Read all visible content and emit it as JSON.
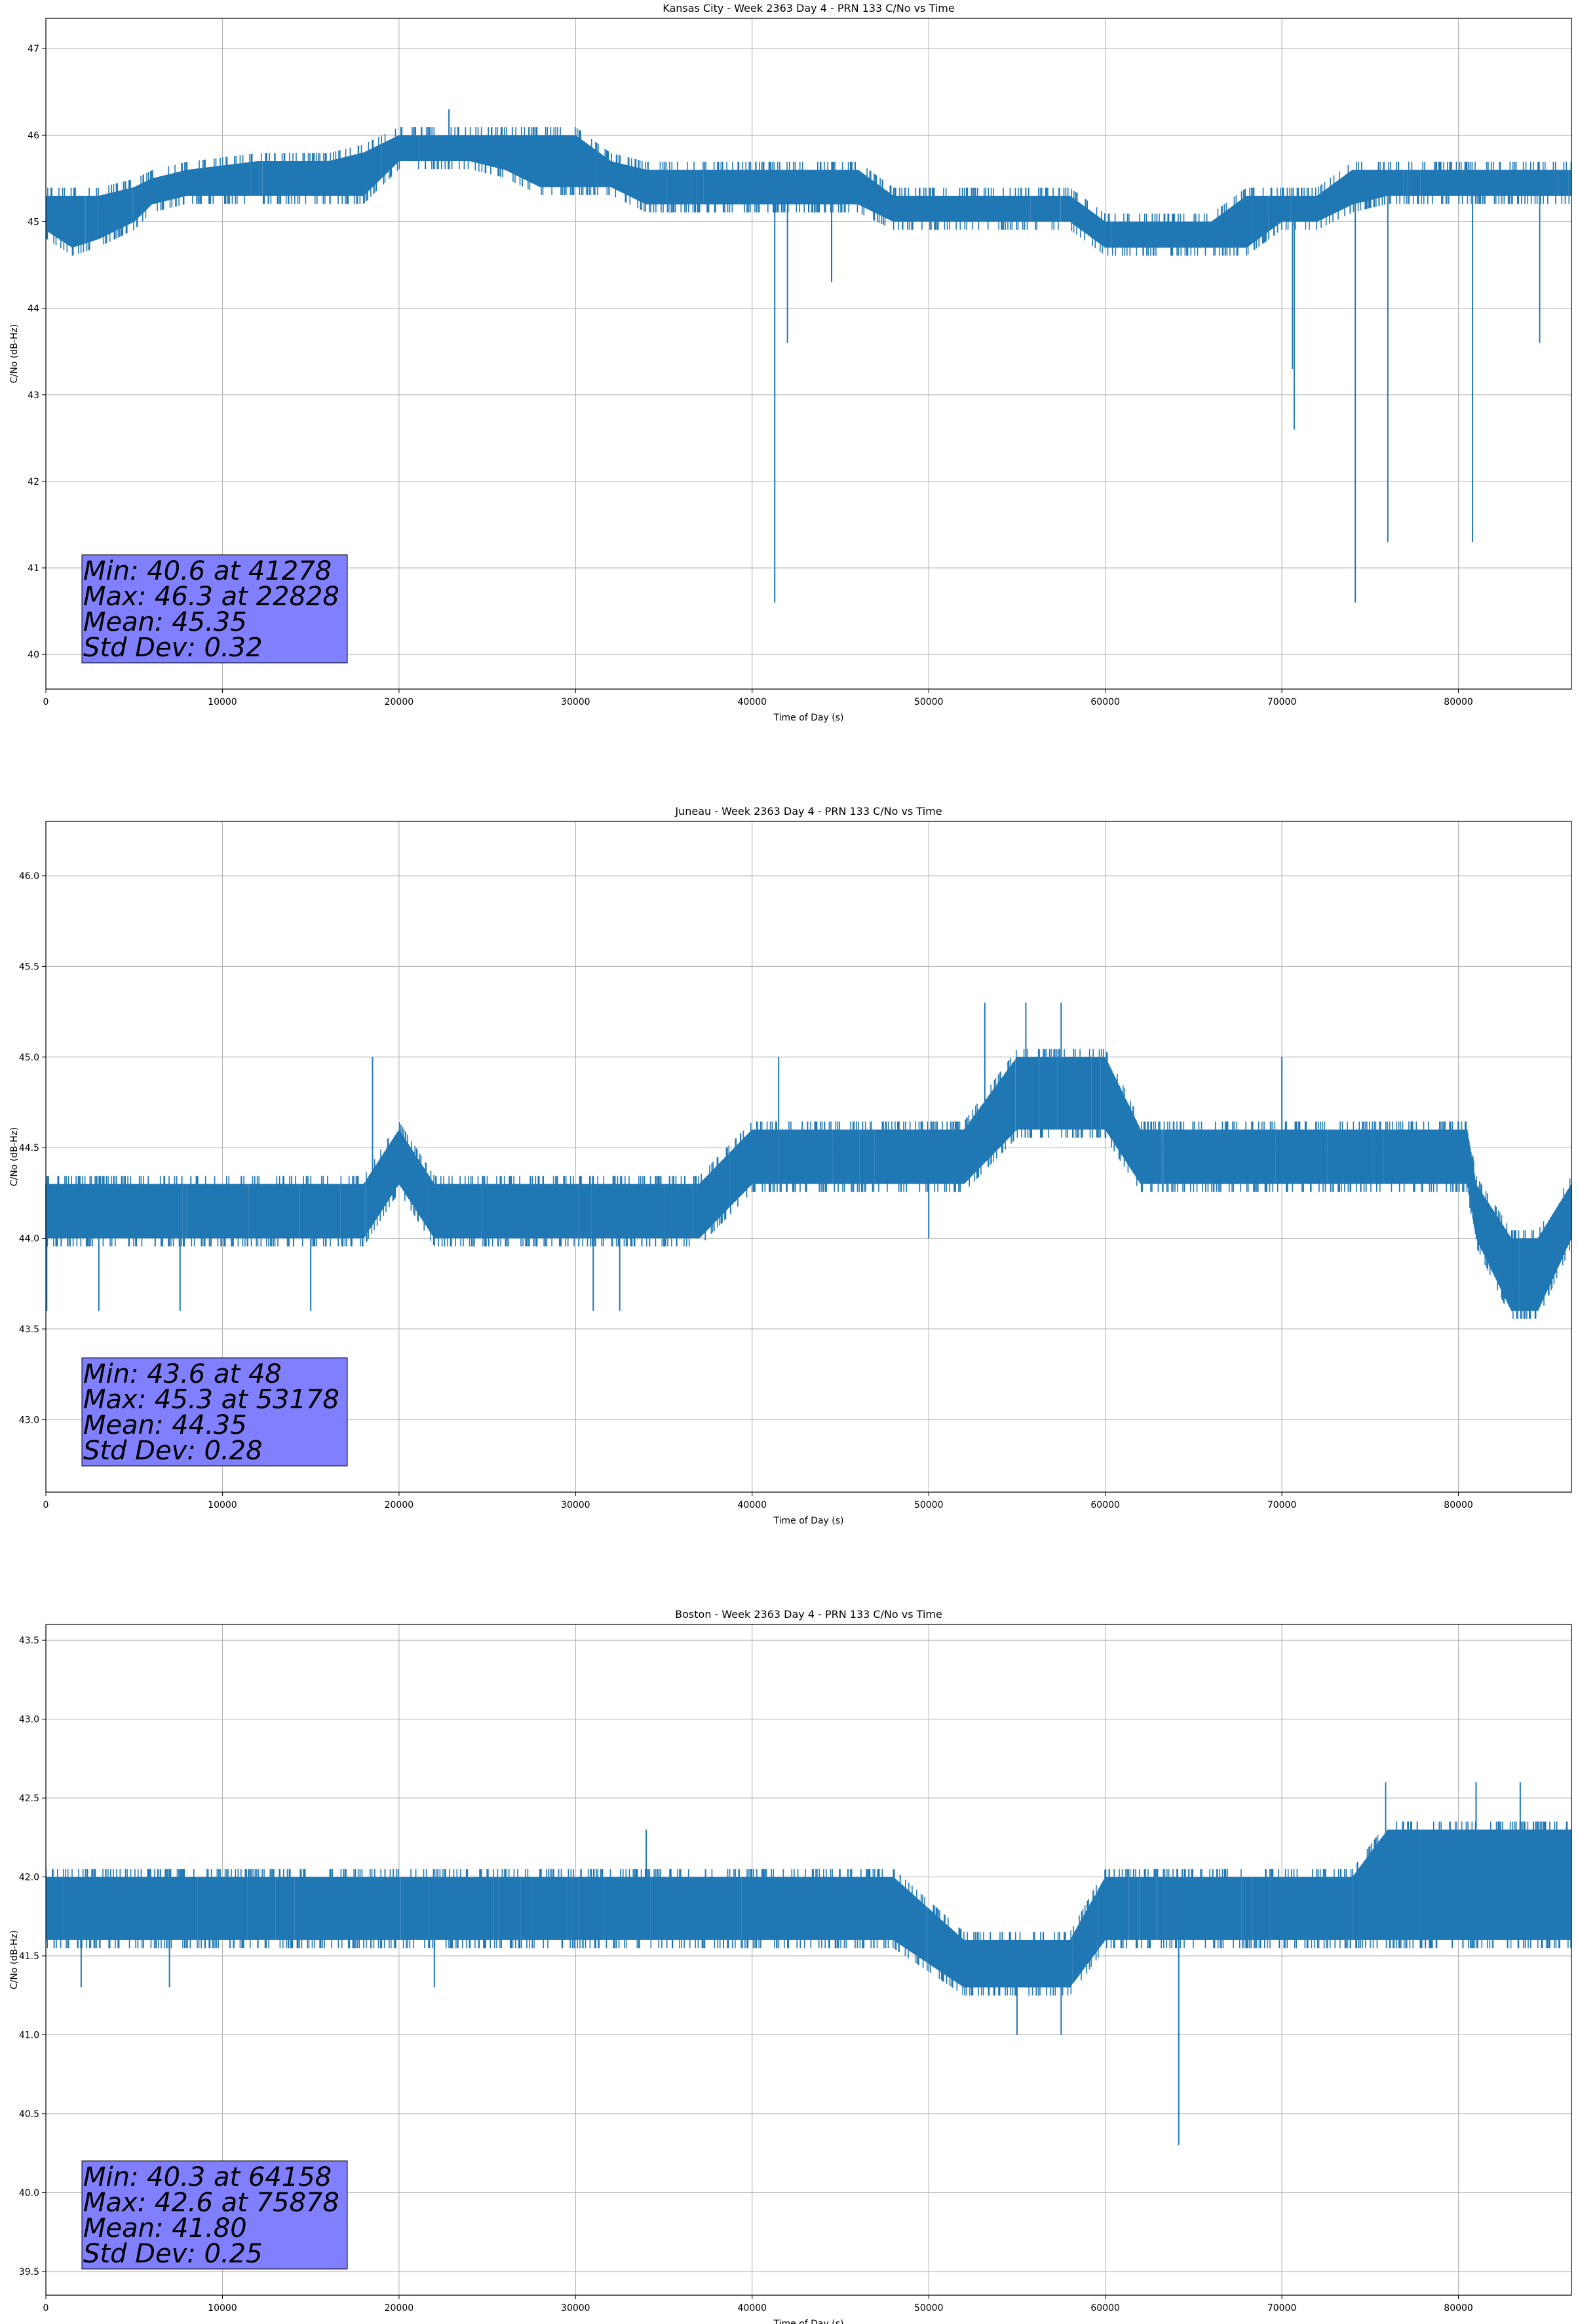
{
  "series_color": "#1f77b4",
  "stats_box_color": "#8080ff",
  "chart_data": [
    {
      "type": "line",
      "title": "Kansas City - Week 2363 Day 4 - PRN 133 C/No vs Time",
      "xlabel": "Time of Day (s)",
      "ylabel": "C/No (dB-Hz)",
      "xlim": [
        0,
        86400
      ],
      "ylim": [
        39.6,
        47.35
      ],
      "x_ticks": [
        0,
        10000,
        20000,
        30000,
        40000,
        50000,
        60000,
        70000,
        80000
      ],
      "x_tick_labels": [
        "0",
        "10000",
        "20000",
        "30000",
        "40000",
        "50000",
        "60000",
        "70000",
        "80000"
      ],
      "y_ticks": [
        40,
        41,
        42,
        43,
        44,
        45,
        46,
        47
      ],
      "y_tick_labels": [
        "40",
        "41",
        "42",
        "43",
        "44",
        "45",
        "46",
        "47"
      ],
      "grid": true,
      "band": {
        "x": [
          0,
          1500,
          3000,
          5000,
          6000,
          8000,
          12000,
          14000,
          16000,
          18000,
          20000,
          22000,
          24000,
          26000,
          28000,
          30000,
          32000,
          34000,
          36000,
          38000,
          40000,
          42000,
          44000,
          46000,
          48000,
          50000,
          52000,
          54000,
          56000,
          58000,
          60000,
          62000,
          64000,
          66000,
          68000,
          70000,
          72000,
          74000,
          76000,
          78000,
          80000,
          82000,
          84000,
          86400
        ],
        "low": [
          44.9,
          44.7,
          44.8,
          45.0,
          45.2,
          45.3,
          45.3,
          45.3,
          45.3,
          45.3,
          45.7,
          45.7,
          45.7,
          45.6,
          45.4,
          45.4,
          45.4,
          45.2,
          45.2,
          45.2,
          45.2,
          45.2,
          45.2,
          45.2,
          45.0,
          45.0,
          45.0,
          45.0,
          45.0,
          45.0,
          44.7,
          44.7,
          44.7,
          44.7,
          44.7,
          45.0,
          45.0,
          45.2,
          45.3,
          45.3,
          45.3,
          45.3,
          45.3,
          45.3
        ],
        "high": [
          45.3,
          45.3,
          45.3,
          45.4,
          45.5,
          45.6,
          45.7,
          45.7,
          45.7,
          45.8,
          46.0,
          46.0,
          46.0,
          46.0,
          46.0,
          46.0,
          45.7,
          45.6,
          45.6,
          45.6,
          45.6,
          45.6,
          45.6,
          45.6,
          45.3,
          45.3,
          45.3,
          45.3,
          45.3,
          45.3,
          45.0,
          45.0,
          45.0,
          45.0,
          45.3,
          45.3,
          45.3,
          45.6,
          45.6,
          45.6,
          45.6,
          45.6,
          45.6,
          45.6
        ]
      },
      "spikes": [
        {
          "x": 41278,
          "y": 40.6
        },
        {
          "x": 42000,
          "y": 43.6
        },
        {
          "x": 44500,
          "y": 44.3
        },
        {
          "x": 70600,
          "y": 43.3
        },
        {
          "x": 70700,
          "y": 42.6
        },
        {
          "x": 74158,
          "y": 40.6
        },
        {
          "x": 76000,
          "y": 41.3
        },
        {
          "x": 80800,
          "y": 41.3
        },
        {
          "x": 84600,
          "y": 43.6
        },
        {
          "x": 22828,
          "y": 46.3
        }
      ],
      "stats": [
        "Min: 40.6 at 41278",
        "Max: 46.3 at 22828",
        "Mean: 45.35",
        "Std Dev: 0.32"
      ]
    },
    {
      "type": "line",
      "title": "Juneau - Week 2363 Day 4 - PRN 133 C/No vs Time",
      "xlabel": "Time of Day (s)",
      "ylabel": "C/No (dB-Hz)",
      "xlim": [
        0,
        86400
      ],
      "ylim": [
        42.6,
        46.3
      ],
      "x_ticks": [
        0,
        10000,
        20000,
        30000,
        40000,
        50000,
        60000,
        70000,
        80000
      ],
      "x_tick_labels": [
        "0",
        "10000",
        "20000",
        "30000",
        "40000",
        "50000",
        "60000",
        "70000",
        "80000"
      ],
      "y_ticks": [
        43.0,
        43.5,
        44.0,
        44.5,
        45.0,
        45.5,
        46.0
      ],
      "y_tick_labels": [
        "43.0",
        "43.5",
        "44.0",
        "44.5",
        "45.0",
        "45.5",
        "46.0"
      ],
      "grid": true,
      "band": {
        "x": [
          0,
          2000,
          5000,
          10000,
          15000,
          18000,
          20000,
          22000,
          25000,
          30000,
          35000,
          37000,
          40000,
          45000,
          50000,
          52000,
          55000,
          58000,
          60000,
          62000,
          65000,
          70000,
          75000,
          78000,
          80500,
          81000,
          83000,
          84500,
          86400
        ],
        "low": [
          44.0,
          44.0,
          44.0,
          44.0,
          44.0,
          44.0,
          44.3,
          44.0,
          44.0,
          44.0,
          44.0,
          44.0,
          44.3,
          44.3,
          44.3,
          44.3,
          44.6,
          44.6,
          44.6,
          44.3,
          44.3,
          44.3,
          44.3,
          44.3,
          44.3,
          44.0,
          43.6,
          43.6,
          44.0
        ],
        "high": [
          44.3,
          44.3,
          44.3,
          44.3,
          44.3,
          44.3,
          44.6,
          44.3,
          44.3,
          44.3,
          44.3,
          44.3,
          44.6,
          44.6,
          44.6,
          44.6,
          45.0,
          45.0,
          45.0,
          44.6,
          44.6,
          44.6,
          44.6,
          44.6,
          44.6,
          44.3,
          44.0,
          44.0,
          44.3
        ]
      },
      "spikes": [
        {
          "x": 48,
          "y": 43.6
        },
        {
          "x": 3000,
          "y": 43.6
        },
        {
          "x": 7600,
          "y": 43.6
        },
        {
          "x": 15000,
          "y": 43.6
        },
        {
          "x": 31000,
          "y": 43.6
        },
        {
          "x": 32500,
          "y": 43.6
        },
        {
          "x": 50000,
          "y": 44.0
        },
        {
          "x": 18500,
          "y": 45.0
        },
        {
          "x": 41500,
          "y": 45.0
        },
        {
          "x": 53178,
          "y": 45.3
        },
        {
          "x": 55500,
          "y": 45.3
        },
        {
          "x": 57500,
          "y": 45.3
        },
        {
          "x": 70000,
          "y": 45.0
        }
      ],
      "stats": [
        "Min: 43.6 at 48",
        "Max: 45.3 at 53178",
        "Mean: 44.35",
        "Std Dev: 0.28"
      ]
    },
    {
      "type": "line",
      "title": "Boston - Week 2363 Day 4 - PRN 133 C/No vs Time",
      "xlabel": "Time of Day (s)",
      "ylabel": "C/No (dB-Hz)",
      "xlim": [
        0,
        86400
      ],
      "ylim": [
        39.35,
        43.6
      ],
      "x_ticks": [
        0,
        10000,
        20000,
        30000,
        40000,
        50000,
        60000,
        70000,
        80000
      ],
      "x_tick_labels": [
        "0",
        "10000",
        "20000",
        "30000",
        "40000",
        "50000",
        "60000",
        "70000",
        "80000"
      ],
      "y_ticks": [
        39.5,
        40.0,
        40.5,
        41.0,
        41.5,
        42.0,
        42.5,
        43.0,
        43.5
      ],
      "y_tick_labels": [
        "39.5",
        "40.0",
        "40.5",
        "41.0",
        "41.5",
        "42.0",
        "42.5",
        "43.0",
        "43.5"
      ],
      "grid": true,
      "band": {
        "x": [
          0,
          5000,
          10000,
          15000,
          20000,
          25000,
          30000,
          35000,
          40000,
          45000,
          48000,
          52000,
          55000,
          58000,
          60000,
          65000,
          70000,
          74000,
          76000,
          80000,
          84000,
          86400
        ],
        "low": [
          41.6,
          41.6,
          41.6,
          41.6,
          41.6,
          41.6,
          41.6,
          41.6,
          41.6,
          41.6,
          41.6,
          41.3,
          41.3,
          41.3,
          41.6,
          41.6,
          41.6,
          41.6,
          41.6,
          41.6,
          41.6,
          41.6
        ],
        "high": [
          42.0,
          42.0,
          42.0,
          42.0,
          42.0,
          42.0,
          42.0,
          42.0,
          42.0,
          42.0,
          42.0,
          41.6,
          41.6,
          41.6,
          42.0,
          42.0,
          42.0,
          42.0,
          42.3,
          42.3,
          42.3,
          42.3
        ]
      },
      "spikes": [
        {
          "x": 64158,
          "y": 40.3
        },
        {
          "x": 55000,
          "y": 41.0
        },
        {
          "x": 57500,
          "y": 41.0
        },
        {
          "x": 2000,
          "y": 41.3
        },
        {
          "x": 7000,
          "y": 41.3
        },
        {
          "x": 22000,
          "y": 41.3
        },
        {
          "x": 34000,
          "y": 42.3
        },
        {
          "x": 75878,
          "y": 42.6
        },
        {
          "x": 81000,
          "y": 42.6
        },
        {
          "x": 83500,
          "y": 42.6
        }
      ],
      "stats": [
        "Min: 40.3 at 64158",
        "Max: 42.6 at 75878",
        "Mean: 41.80",
        "Std Dev: 0.25"
      ]
    }
  ]
}
